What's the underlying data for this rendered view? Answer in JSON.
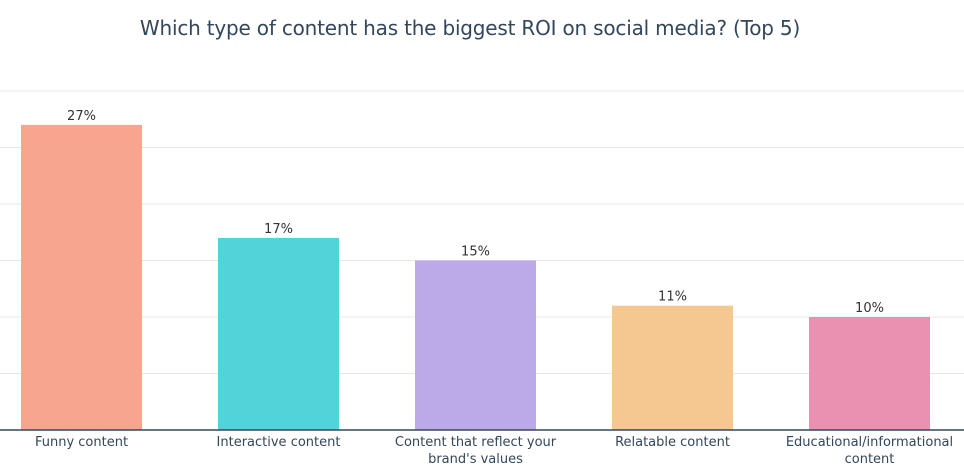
{
  "chart_data": {
    "type": "bar",
    "title": "Which type of content has the biggest ROI on social media? (Top 5)",
    "categories": [
      [
        "Funny content"
      ],
      [
        "Interactive content"
      ],
      [
        "Content that reflect your",
        "brand's values"
      ],
      [
        "Relatable content"
      ],
      [
        "Educational/informational",
        "content"
      ]
    ],
    "values": [
      27,
      17,
      15,
      11,
      10
    ],
    "value_labels": [
      "27%",
      "17%",
      "15%",
      "11%",
      "10%"
    ],
    "colors": [
      "#f8a58f",
      "#51d3d9",
      "#bca9e8",
      "#f5c891",
      "#ea90b1"
    ],
    "ylim": [
      0,
      30
    ],
    "grid": true,
    "gridline_color": "#e5e8eb",
    "axis_color": "#33475b"
  }
}
